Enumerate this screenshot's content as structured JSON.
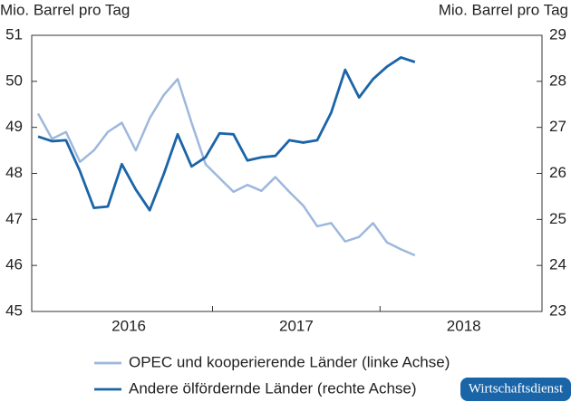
{
  "chart_data": {
    "type": "line",
    "ylabel": "Mio. Barrel pro Tag",
    "y2label": "Mio. Barrel pro Tag",
    "categories": [
      null,
      null,
      null,
      null,
      null,
      null,
      null,
      null,
      null,
      null,
      null,
      null,
      null,
      null,
      null,
      null,
      null,
      null,
      null,
      null,
      null,
      null,
      null,
      null,
      null,
      null,
      null,
      null
    ],
    "year_labels": [
      "2016",
      "2017",
      "2018"
    ],
    "ylim": [
      45,
      51
    ],
    "yticks": [
      45,
      46,
      47,
      48,
      49,
      50,
      51
    ],
    "y2lim": [
      23,
      29
    ],
    "y2ticks": [
      23,
      24,
      25,
      26,
      27,
      28,
      29
    ],
    "series": [
      {
        "name": "OPEC und kooperierende Länder (linke Achse)",
        "color": "#9db8dc",
        "axis": "y",
        "values": [
          49.3,
          48.75,
          48.9,
          48.25,
          48.5,
          48.9,
          49.1,
          48.5,
          49.2,
          49.7,
          50.05,
          49.1,
          48.2,
          47.9,
          47.6,
          47.75,
          47.62,
          47.92,
          47.6,
          47.3,
          46.85,
          46.92,
          46.52,
          46.62,
          46.92,
          46.5,
          46.35,
          46.22
        ]
      },
      {
        "name": "Andere ölfördernde Länder (rechte Achse)",
        "color": "#1a64a8",
        "axis": "y2",
        "values": [
          26.8,
          26.7,
          26.72,
          26.05,
          25.25,
          25.28,
          26.2,
          25.65,
          25.2,
          25.98,
          26.85,
          26.15,
          26.35,
          26.87,
          26.85,
          26.28,
          26.35,
          26.38,
          26.72,
          26.67,
          26.72,
          27.32,
          28.25,
          27.65,
          28.05,
          28.32,
          28.52,
          28.42
        ]
      }
    ],
    "watermark": "Wirtschaftsdienst"
  }
}
